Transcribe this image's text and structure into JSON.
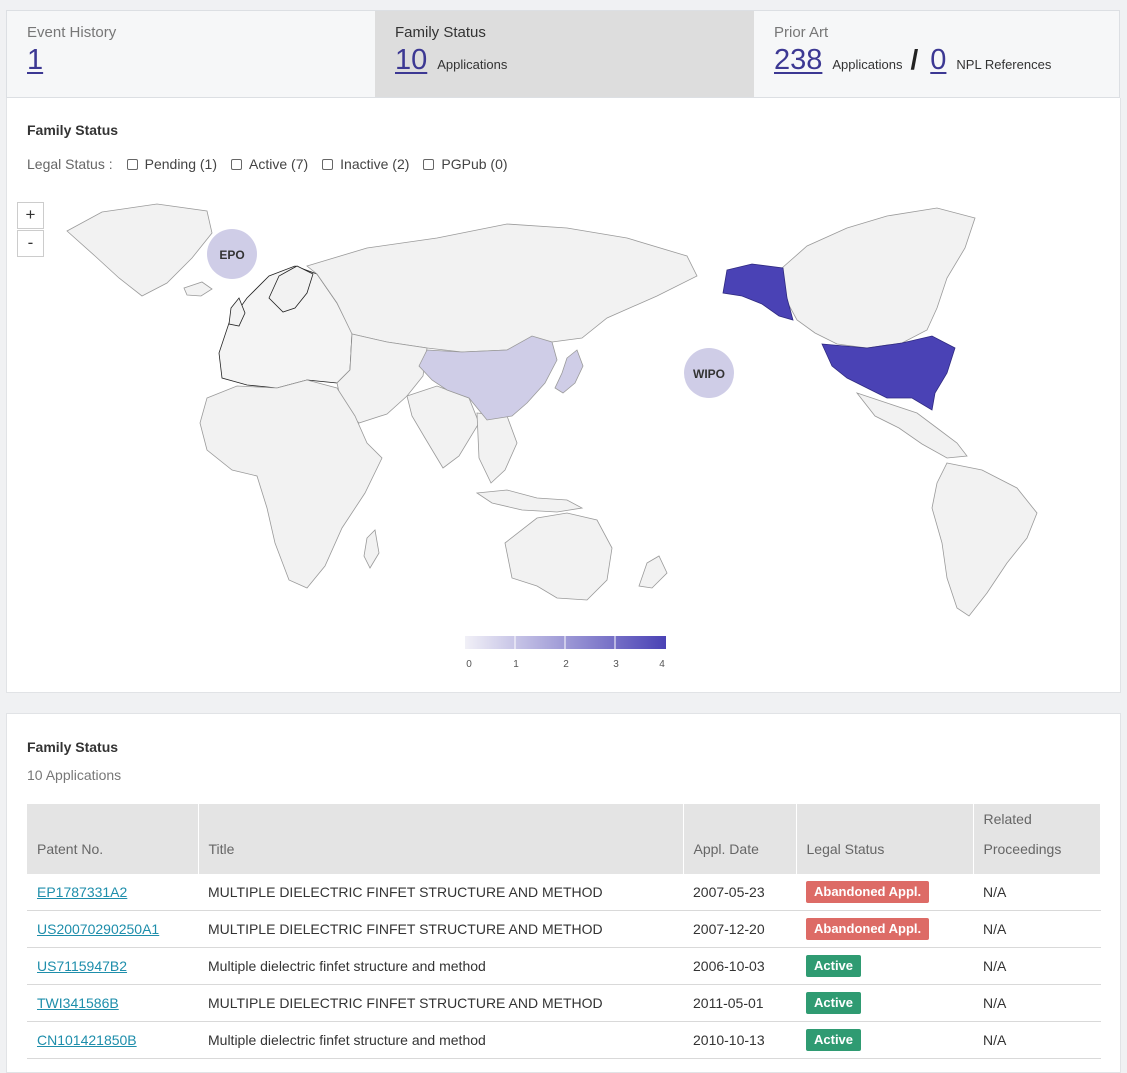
{
  "tabs": [
    {
      "title": "Event History",
      "value": "1"
    },
    {
      "title": "Family Status",
      "value": "10",
      "unit": "Applications"
    },
    {
      "title": "Prior Art",
      "value": "238",
      "unit": "Applications",
      "value2": "0",
      "unit2": "NPL References"
    }
  ],
  "map_panel": {
    "title": "Family Status",
    "legal_status_label": "Legal Status :",
    "filters": [
      "Pending (1)",
      "Active (7)",
      "Inactive (2)",
      "PGPub (0)"
    ],
    "zoom_in": "+",
    "zoom_out": "-",
    "bubbles": [
      "EPO",
      "WIPO"
    ],
    "legend_ticks": [
      "0",
      "1",
      "2",
      "3",
      "4"
    ],
    "legend_colors": [
      "#f1f0f7",
      "#4a42b5"
    ],
    "highlighted": [
      {
        "region": "United States",
        "value": 4,
        "color": "#4a42b5"
      },
      {
        "region": "China",
        "value": 1,
        "color": "#cfcde7"
      },
      {
        "region": "Japan",
        "value": 1,
        "color": "#cfcde7"
      },
      {
        "region": "EPO",
        "value": 1,
        "color": "#cfcde7"
      },
      {
        "region": "WIPO",
        "value": 1,
        "color": "#cfcde7"
      }
    ]
  },
  "table_panel": {
    "title": "Family Status",
    "subtitle": "10 Applications",
    "headers": [
      "Patent No.",
      "Title",
      "Appl. Date",
      "Legal Status",
      "Related Proceedings"
    ],
    "status_colors": {
      "Abandoned Appl.": "#dd6b66",
      "Active": "#2f9b72"
    },
    "rows": [
      {
        "patent": "EP1787331A2",
        "title": "MULTIPLE DIELECTRIC FINFET STRUCTURE AND METHOD",
        "date": "2007-05-23",
        "status": "Abandoned Appl.",
        "related": "N/A"
      },
      {
        "patent": "US20070290250A1",
        "title": "MULTIPLE DIELECTRIC FINFET STRUCTURE AND METHOD",
        "date": "2007-12-20",
        "status": "Abandoned Appl.",
        "related": "N/A"
      },
      {
        "patent": "US7115947B2",
        "title": "Multiple dielectric finfet structure and method",
        "date": "2006-10-03",
        "status": "Active",
        "related": "N/A"
      },
      {
        "patent": "TWI341586B",
        "title": "MULTIPLE DIELECTRIC FINFET STRUCTURE AND METHOD",
        "date": "2011-05-01",
        "status": "Active",
        "related": "N/A"
      },
      {
        "patent": "CN101421850B",
        "title": "Multiple dielectric finfet structure and method",
        "date": "2010-10-13",
        "status": "Active",
        "related": "N/A"
      }
    ]
  }
}
